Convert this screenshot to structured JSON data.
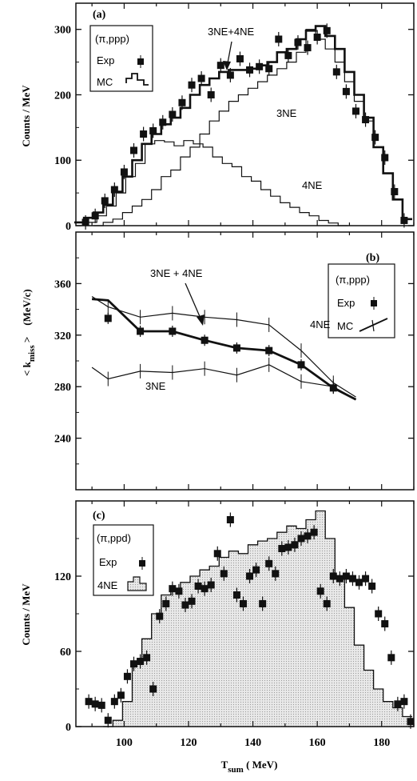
{
  "chart_data": [
    {
      "panel": "(a)",
      "type": "line",
      "ylabel": "Counts / MeV",
      "ylim": [
        0,
        340
      ],
      "xlim": [
        85,
        190
      ],
      "yticks": [
        0,
        100,
        200,
        300
      ],
      "legend": {
        "title": "(π,ppp)",
        "exp": "Exp",
        "mc": "MC",
        "placement": "top-left"
      },
      "annotations": {
        "sum": "3NE+4NE",
        "three": "3NE",
        "four": "4NE"
      },
      "exp": {
        "x": [
          88,
          91,
          94,
          97,
          100,
          103,
          106,
          109,
          112,
          115,
          118,
          121,
          124,
          127,
          130,
          133,
          136,
          139,
          142,
          145,
          148,
          151,
          154,
          157,
          160,
          163,
          166,
          169,
          172,
          175,
          178,
          181,
          184,
          187
        ],
        "y": [
          5,
          15,
          38,
          55,
          82,
          115,
          140,
          145,
          158,
          170,
          188,
          215,
          225,
          200,
          245,
          230,
          255,
          238,
          243,
          240,
          285,
          260,
          280,
          272,
          288,
          298,
          235,
          205,
          175,
          162,
          135,
          104,
          52,
          8
        ]
      },
      "sum": {
        "x": [
          86,
          89,
          92,
          95,
          98,
          101,
          104,
          107,
          110,
          113,
          116,
          119,
          122,
          125,
          128,
          131,
          134,
          137,
          140,
          143,
          146,
          149,
          152,
          155,
          158,
          161,
          164,
          167,
          170,
          173,
          176,
          179,
          182,
          185,
          188
        ],
        "y": [
          5,
          12,
          20,
          32,
          52,
          75,
          100,
          125,
          140,
          155,
          165,
          180,
          200,
          215,
          225,
          235,
          238,
          238,
          240,
          245,
          250,
          265,
          270,
          285,
          298,
          305,
          290,
          270,
          235,
          200,
          165,
          120,
          80,
          40,
          10
        ]
      },
      "three": {
        "x": [
          92,
          95,
          98,
          101,
          104,
          107,
          110,
          113,
          116,
          119,
          122,
          125,
          128,
          131,
          134,
          137,
          140,
          143,
          146,
          149,
          152,
          155,
          158,
          161,
          164,
          167,
          170,
          173,
          176,
          179,
          182,
          185,
          188
        ],
        "y": [
          0,
          5,
          10,
          20,
          30,
          40,
          55,
          75,
          85,
          105,
          120,
          140,
          160,
          175,
          190,
          200,
          210,
          220,
          230,
          240,
          250,
          265,
          300,
          285,
          270,
          250,
          220,
          190,
          160,
          120,
          80,
          40,
          10
        ]
      },
      "four": {
        "x": [
          90,
          93,
          96,
          99,
          102,
          105,
          108,
          111,
          114,
          117,
          120,
          123,
          126,
          129,
          132,
          135,
          138,
          141,
          144,
          147,
          150,
          153,
          156,
          159,
          162,
          165,
          168
        ],
        "y": [
          5,
          15,
          30,
          50,
          75,
          95,
          125,
          130,
          128,
          122,
          130,
          125,
          120,
          105,
          95,
          90,
          75,
          68,
          55,
          45,
          35,
          28,
          20,
          15,
          8,
          4,
          0
        ]
      }
    },
    {
      "panel": "(b)",
      "type": "line",
      "ylabel_parts": [
        "< k",
        "miss",
        " >",
        "(MeV/c)"
      ],
      "ylim": [
        200,
        400
      ],
      "xlim": [
        85,
        190
      ],
      "yticks": [
        240,
        280,
        320,
        360
      ],
      "legend": {
        "title": "(π,ppp)",
        "exp": "Exp",
        "mc": "MC",
        "placement": "top-right"
      },
      "annotations": {
        "sum": "3NE + 4NE",
        "three": "3NE",
        "four": "4NE"
      },
      "exp": {
        "x": [
          95,
          105,
          115,
          125,
          135,
          145,
          155,
          165
        ],
        "y": [
          333,
          323,
          323,
          316,
          310,
          308,
          297,
          279
        ]
      },
      "sum": {
        "x": [
          90,
          95,
          105,
          115,
          125,
          135,
          145,
          155,
          165,
          172
        ],
        "y": [
          348,
          347,
          323,
          323,
          316,
          310,
          308,
          297,
          279,
          270
        ]
      },
      "four": {
        "x": [
          90,
          95,
          105,
          115,
          125,
          135,
          145,
          155,
          165,
          172
        ],
        "y": [
          350,
          342,
          334,
          337,
          334,
          332,
          328,
          308,
          283,
          272
        ]
      },
      "three": {
        "x": [
          90,
          95,
          105,
          115,
          125,
          135,
          145,
          155,
          165,
          172
        ],
        "y": [
          295,
          286,
          292,
          291,
          294,
          289,
          297,
          284,
          280,
          270
        ]
      }
    },
    {
      "panel": "(c)",
      "type": "area",
      "ylabel": "Counts / MeV",
      "xlabel_parts": [
        "T",
        "sum",
        " ( MeV)"
      ],
      "ylim": [
        0,
        180
      ],
      "xlim": [
        85,
        190
      ],
      "yticks": [
        0,
        60,
        120
      ],
      "xticks": [
        100,
        120,
        140,
        160,
        180
      ],
      "legend": {
        "title": "(π,ppd)",
        "exp": "Exp",
        "mc": "4NE",
        "placement": "top-left"
      },
      "exp": {
        "x": [
          89,
          91,
          93,
          95,
          97,
          99,
          101,
          103,
          105,
          107,
          109,
          111,
          113,
          115,
          117,
          119,
          121,
          123,
          125,
          127,
          129,
          131,
          133,
          135,
          137,
          139,
          141,
          143,
          145,
          147,
          149,
          151,
          153,
          155,
          157,
          159,
          161,
          163,
          165,
          167,
          169,
          171,
          173,
          175,
          177,
          179,
          181,
          183,
          185,
          187,
          189
        ],
        "y": [
          20,
          18,
          17,
          5,
          20,
          25,
          40,
          50,
          52,
          55,
          30,
          88,
          98,
          110,
          108,
          97,
          100,
          112,
          110,
          113,
          138,
          122,
          165,
          105,
          98,
          120,
          125,
          98,
          130,
          122,
          142,
          143,
          145,
          150,
          152,
          155,
          108,
          98,
          120,
          118,
          120,
          118,
          115,
          118,
          112,
          90,
          82,
          55,
          18,
          20,
          4
        ]
      },
      "mc": {
        "x": [
          95,
          98,
          101,
          104,
          107,
          110,
          113,
          116,
          119,
          122,
          125,
          128,
          131,
          134,
          137,
          140,
          143,
          146,
          149,
          152,
          155,
          158,
          161,
          164,
          167,
          170,
          173,
          176,
          179,
          182,
          185,
          188
        ],
        "y": [
          0,
          5,
          20,
          50,
          70,
          90,
          105,
          110,
          115,
          120,
          125,
          128,
          135,
          140,
          138,
          145,
          148,
          150,
          155,
          160,
          158,
          165,
          172,
          150,
          120,
          95,
          65,
          45,
          30,
          20,
          15,
          8
        ]
      }
    }
  ]
}
